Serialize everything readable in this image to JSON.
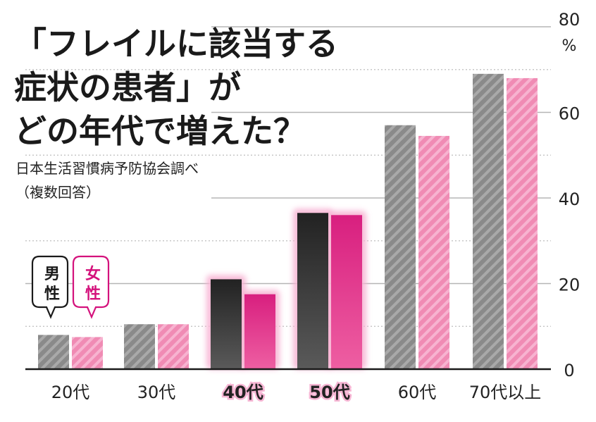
{
  "title_lines": [
    "「フレイルに該当する",
    "症状の患者」が",
    "どの年代で増えた？"
  ],
  "source": "日本生活習慣病予防協会調べ",
  "note": "（複数回答）",
  "legend": {
    "male": "男性",
    "female": "女性"
  },
  "colors": {
    "male": "#8a8a8a",
    "female": "#f08bb4",
    "male_highlight": "#2b2b2b",
    "female_highlight": "#e0348b",
    "glow": "#f7b3d3",
    "legend_female": "#d4127c"
  },
  "chart_data": {
    "type": "bar",
    "categories": [
      "20代",
      "30代",
      "40代",
      "50代",
      "60代",
      "70代以上"
    ],
    "highlighted_categories": [
      "40代",
      "50代"
    ],
    "series": [
      {
        "name": "男性",
        "values": [
          8.0,
          10.5,
          21.0,
          36.5,
          57.0,
          69.0
        ]
      },
      {
        "name": "女性",
        "values": [
          7.5,
          10.5,
          17.5,
          36.0,
          54.5,
          68.0
        ]
      }
    ],
    "ylim": [
      0,
      80
    ],
    "yticks": [
      "0",
      "20",
      "40",
      "60",
      "80"
    ],
    "yunit": "%",
    "title": "「フレイルに該当する症状の患者」がどの年代で増えた？",
    "xlabel": "",
    "ylabel": "",
    "grid": true,
    "legend_position": "left"
  }
}
